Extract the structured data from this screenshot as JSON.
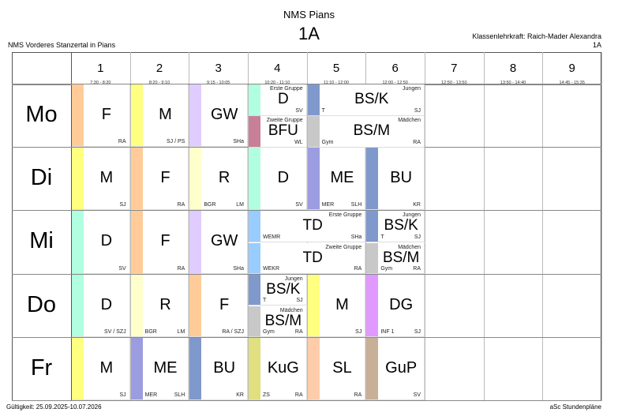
{
  "header": {
    "school_name": "NMS Pians",
    "class_name": "1A",
    "school_full": "NMS Vorderes Stanzertal in Pians",
    "class_teacher": "Klassenlehrkraft: Raich-Mader Alexandra",
    "class_short": "1A"
  },
  "footer": {
    "validity": "Gültigkeit: 25.09.2025-10.07.2026",
    "brand": "aSc Stundenpläne"
  },
  "periods": [
    {
      "num": "1",
      "time": "7:30 - 8:20"
    },
    {
      "num": "2",
      "time": "8:20 - 9:10"
    },
    {
      "num": "3",
      "time": "9:15 - 10:05"
    },
    {
      "num": "4",
      "time": "10:20 - 11:10"
    },
    {
      "num": "5",
      "time": "11:10 - 12:00"
    },
    {
      "num": "6",
      "time": "12:00 - 12:50"
    },
    {
      "num": "7",
      "time": "12:50 - 13:50"
    },
    {
      "num": "8",
      "time": "13:50 - 14:40"
    },
    {
      "num": "9",
      "time": "14:45 - 15:35"
    }
  ],
  "days": [
    "Mo",
    "Di",
    "Mi",
    "Do",
    "Fr"
  ],
  "lessons": [
    {
      "day": 0,
      "period": 1,
      "span": 1,
      "half": 0,
      "subject": "F",
      "teacher": "RA",
      "room": "",
      "group": "",
      "color": "#ffcc99"
    },
    {
      "day": 0,
      "period": 2,
      "span": 1,
      "half": 0,
      "subject": "M",
      "teacher": "SJ / PS",
      "room": "",
      "group": "",
      "color": "#ffff80"
    },
    {
      "day": 0,
      "period": 3,
      "span": 1,
      "half": 0,
      "subject": "GW",
      "teacher": "SHa",
      "room": "",
      "group": "",
      "color": "#e0ccff"
    },
    {
      "day": 0,
      "period": 4,
      "span": 1,
      "half": 1,
      "subject": "D",
      "teacher": "SV",
      "room": "",
      "group": "Erste Gruppe",
      "color": "#b0ffe0"
    },
    {
      "day": 0,
      "period": 4,
      "span": 1,
      "half": 2,
      "subject": "BFU",
      "teacher": "WL",
      "room": "",
      "group": "Zweite Gruppe",
      "color": "#c88098"
    },
    {
      "day": 0,
      "period": 5,
      "span": 2,
      "half": 1,
      "subject": "BS/K",
      "teacher": "SJ",
      "room": "T",
      "group": "Jungen",
      "color": "#8099cc"
    },
    {
      "day": 0,
      "period": 5,
      "span": 2,
      "half": 2,
      "subject": "BS/M",
      "teacher": "RA",
      "room": "Gym",
      "group": "Mädchen",
      "color": "#c8c8c8"
    },
    {
      "day": 1,
      "period": 1,
      "span": 1,
      "half": 0,
      "subject": "M",
      "teacher": "SJ",
      "room": "",
      "group": "",
      "color": "#ffff80"
    },
    {
      "day": 1,
      "period": 2,
      "span": 1,
      "half": 0,
      "subject": "F",
      "teacher": "RA",
      "room": "",
      "group": "",
      "color": "#ffcc99"
    },
    {
      "day": 1,
      "period": 3,
      "span": 1,
      "half": 0,
      "subject": "R",
      "teacher": "LM",
      "room": "BGR",
      "group": "",
      "color": "#ffffcc"
    },
    {
      "day": 1,
      "period": 4,
      "span": 1,
      "half": 0,
      "subject": "D",
      "teacher": "SV",
      "room": "",
      "group": "",
      "color": "#b0ffe0"
    },
    {
      "day": 1,
      "period": 5,
      "span": 1,
      "half": 0,
      "subject": "ME",
      "teacher": "SLH",
      "room": "MER",
      "group": "",
      "color": "#9c9ce0"
    },
    {
      "day": 1,
      "period": 6,
      "span": 1,
      "half": 0,
      "subject": "BU",
      "teacher": "KR",
      "room": "",
      "group": "",
      "color": "#8099cc"
    },
    {
      "day": 2,
      "period": 1,
      "span": 1,
      "half": 0,
      "subject": "D",
      "teacher": "SV",
      "room": "",
      "group": "",
      "color": "#b0ffe0"
    },
    {
      "day": 2,
      "period": 2,
      "span": 1,
      "half": 0,
      "subject": "F",
      "teacher": "RA",
      "room": "",
      "group": "",
      "color": "#ffcc99"
    },
    {
      "day": 2,
      "period": 3,
      "span": 1,
      "half": 0,
      "subject": "GW",
      "teacher": "SHa",
      "room": "",
      "group": "",
      "color": "#e0ccff"
    },
    {
      "day": 2,
      "period": 4,
      "span": 2,
      "half": 1,
      "subject": "TD",
      "teacher": "SHa",
      "room": "WEMR",
      "group": "Erste Gruppe",
      "color": "#99ccff"
    },
    {
      "day": 2,
      "period": 4,
      "span": 2,
      "half": 2,
      "subject": "TD",
      "teacher": "RA",
      "room": "WEKR",
      "group": "Zweite Gruppe",
      "color": "#99ccff"
    },
    {
      "day": 2,
      "period": 6,
      "span": 1,
      "half": 1,
      "subject": "BS/K",
      "teacher": "SJ",
      "room": "T",
      "group": "Jungen",
      "color": "#8099cc"
    },
    {
      "day": 2,
      "period": 6,
      "span": 1,
      "half": 2,
      "subject": "BS/M",
      "teacher": "RA",
      "room": "Gym",
      "group": "Mädchen",
      "color": "#c8c8c8"
    },
    {
      "day": 3,
      "period": 1,
      "span": 1,
      "half": 0,
      "subject": "D",
      "teacher": "SV / SZJ",
      "room": "",
      "group": "",
      "color": "#b0ffe0"
    },
    {
      "day": 3,
      "period": 2,
      "span": 1,
      "half": 0,
      "subject": "R",
      "teacher": "LM",
      "room": "BGR",
      "group": "",
      "color": "#ffffcc"
    },
    {
      "day": 3,
      "period": 3,
      "span": 1,
      "half": 0,
      "subject": "F",
      "teacher": "RA / SZJ",
      "room": "",
      "group": "",
      "color": "#ffcc99"
    },
    {
      "day": 3,
      "period": 4,
      "span": 1,
      "half": 1,
      "subject": "BS/K",
      "teacher": "SJ",
      "room": "T",
      "group": "Jungen",
      "color": "#8099cc"
    },
    {
      "day": 3,
      "period": 4,
      "span": 1,
      "half": 2,
      "subject": "BS/M",
      "teacher": "RA",
      "room": "Gym",
      "group": "Mädchen",
      "color": "#c8c8c8"
    },
    {
      "day": 3,
      "period": 5,
      "span": 1,
      "half": 0,
      "subject": "M",
      "teacher": "SJ",
      "room": "",
      "group": "",
      "color": "#ffff80"
    },
    {
      "day": 3,
      "period": 6,
      "span": 1,
      "half": 0,
      "subject": "DG",
      "teacher": "SJ",
      "room": "INF 1",
      "group": "",
      "color": "#e099ff"
    },
    {
      "day": 4,
      "period": 1,
      "span": 1,
      "half": 0,
      "subject": "M",
      "teacher": "SJ",
      "room": "",
      "group": "",
      "color": "#ffff80"
    },
    {
      "day": 4,
      "period": 2,
      "span": 1,
      "half": 0,
      "subject": "ME",
      "teacher": "SLH",
      "room": "MER",
      "group": "",
      "color": "#9c9ce0"
    },
    {
      "day": 4,
      "period": 3,
      "span": 1,
      "half": 0,
      "subject": "BU",
      "teacher": "KR",
      "room": "",
      "group": "",
      "color": "#8099cc"
    },
    {
      "day": 4,
      "period": 4,
      "span": 1,
      "half": 0,
      "subject": "KuG",
      "teacher": "RA",
      "room": "ZS",
      "group": "",
      "color": "#e0e080"
    },
    {
      "day": 4,
      "period": 5,
      "span": 1,
      "half": 0,
      "subject": "SL",
      "teacher": "RA",
      "room": "",
      "group": "",
      "color": "#ffccaa"
    },
    {
      "day": 4,
      "period": 6,
      "span": 1,
      "half": 0,
      "subject": "GuP",
      "teacher": "SV",
      "room": "",
      "group": "",
      "color": "#c8b098"
    }
  ]
}
